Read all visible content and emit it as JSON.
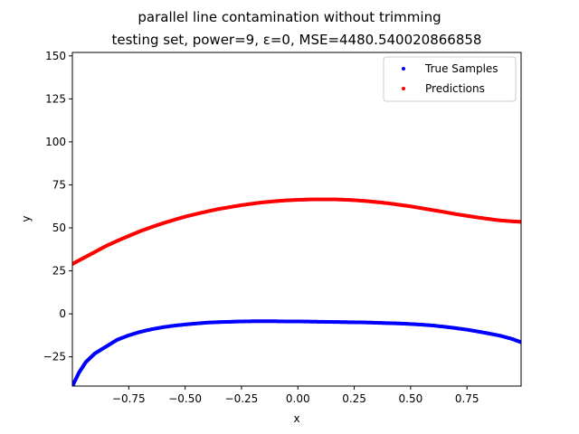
{
  "chart_data": {
    "type": "scatter",
    "title_line1": "parallel line contamination without trimming",
    "title_line2": "testing set, power=9, ε=0, MSE=4480.540020866858",
    "xlabel": "x",
    "ylabel": "y",
    "xlim": [
      -1.0,
      0.99
    ],
    "ylim": [
      -42,
      152
    ],
    "xticks": [
      -0.75,
      -0.5,
      -0.25,
      0.0,
      0.25,
      0.5,
      0.75
    ],
    "xtick_labels": [
      "−0.75",
      "−0.50",
      "−0.25",
      "0.00",
      "0.25",
      "0.50",
      "0.75"
    ],
    "yticks": [
      -25,
      0,
      25,
      50,
      75,
      100,
      125,
      150
    ],
    "ytick_labels": [
      "−25",
      "0",
      "25",
      "50",
      "75",
      "100",
      "125",
      "150"
    ],
    "legend_position": "top-right",
    "series": [
      {
        "name": "True Samples",
        "color": "#0000ff",
        "points": [
          [
            -1.0,
            -42
          ],
          [
            -0.97,
            -34
          ],
          [
            -0.94,
            -28
          ],
          [
            -0.9,
            -23
          ],
          [
            -0.85,
            -19
          ],
          [
            -0.8,
            -15
          ],
          [
            -0.75,
            -12.5
          ],
          [
            -0.7,
            -10.5
          ],
          [
            -0.65,
            -9
          ],
          [
            -0.6,
            -7.8
          ],
          [
            -0.55,
            -6.9
          ],
          [
            -0.5,
            -6.2
          ],
          [
            -0.45,
            -5.6
          ],
          [
            -0.4,
            -5.1
          ],
          [
            -0.35,
            -4.8
          ],
          [
            -0.3,
            -4.6
          ],
          [
            -0.25,
            -4.4
          ],
          [
            -0.2,
            -4.3
          ],
          [
            -0.15,
            -4.3
          ],
          [
            -0.1,
            -4.3
          ],
          [
            -0.05,
            -4.4
          ],
          [
            0.0,
            -4.4
          ],
          [
            0.05,
            -4.5
          ],
          [
            0.1,
            -4.6
          ],
          [
            0.15,
            -4.7
          ],
          [
            0.2,
            -4.8
          ],
          [
            0.25,
            -4.9
          ],
          [
            0.3,
            -5.0
          ],
          [
            0.35,
            -5.2
          ],
          [
            0.4,
            -5.4
          ],
          [
            0.45,
            -5.6
          ],
          [
            0.5,
            -5.9
          ],
          [
            0.55,
            -6.3
          ],
          [
            0.6,
            -6.8
          ],
          [
            0.65,
            -7.5
          ],
          [
            0.7,
            -8.3
          ],
          [
            0.75,
            -9.2
          ],
          [
            0.8,
            -10.3
          ],
          [
            0.85,
            -11.5
          ],
          [
            0.9,
            -12.8
          ],
          [
            0.95,
            -14.6
          ],
          [
            0.99,
            -16.5
          ]
        ]
      },
      {
        "name": "Predictions",
        "color": "#ff0000",
        "points": [
          [
            -1.0,
            29
          ],
          [
            -0.95,
            32.5
          ],
          [
            -0.9,
            36
          ],
          [
            -0.85,
            39.5
          ],
          [
            -0.8,
            42.5
          ],
          [
            -0.75,
            45.3
          ],
          [
            -0.7,
            48
          ],
          [
            -0.65,
            50.4
          ],
          [
            -0.6,
            52.6
          ],
          [
            -0.55,
            54.6
          ],
          [
            -0.5,
            56.5
          ],
          [
            -0.45,
            58.1
          ],
          [
            -0.4,
            59.6
          ],
          [
            -0.35,
            61
          ],
          [
            -0.3,
            62.1
          ],
          [
            -0.25,
            63.2
          ],
          [
            -0.2,
            64.1
          ],
          [
            -0.15,
            64.9
          ],
          [
            -0.1,
            65.5
          ],
          [
            -0.05,
            66
          ],
          [
            0.0,
            66.3
          ],
          [
            0.05,
            66.5
          ],
          [
            0.1,
            66.6
          ],
          [
            0.15,
            66.6
          ],
          [
            0.2,
            66.4
          ],
          [
            0.25,
            66.1
          ],
          [
            0.3,
            65.6
          ],
          [
            0.35,
            65
          ],
          [
            0.4,
            64.3
          ],
          [
            0.45,
            63.4
          ],
          [
            0.5,
            62.5
          ],
          [
            0.55,
            61.4
          ],
          [
            0.6,
            60.3
          ],
          [
            0.65,
            59.2
          ],
          [
            0.7,
            58
          ],
          [
            0.75,
            57
          ],
          [
            0.8,
            56
          ],
          [
            0.85,
            55.1
          ],
          [
            0.9,
            54.3
          ],
          [
            0.95,
            53.8
          ],
          [
            0.99,
            53.5
          ]
        ]
      }
    ]
  }
}
